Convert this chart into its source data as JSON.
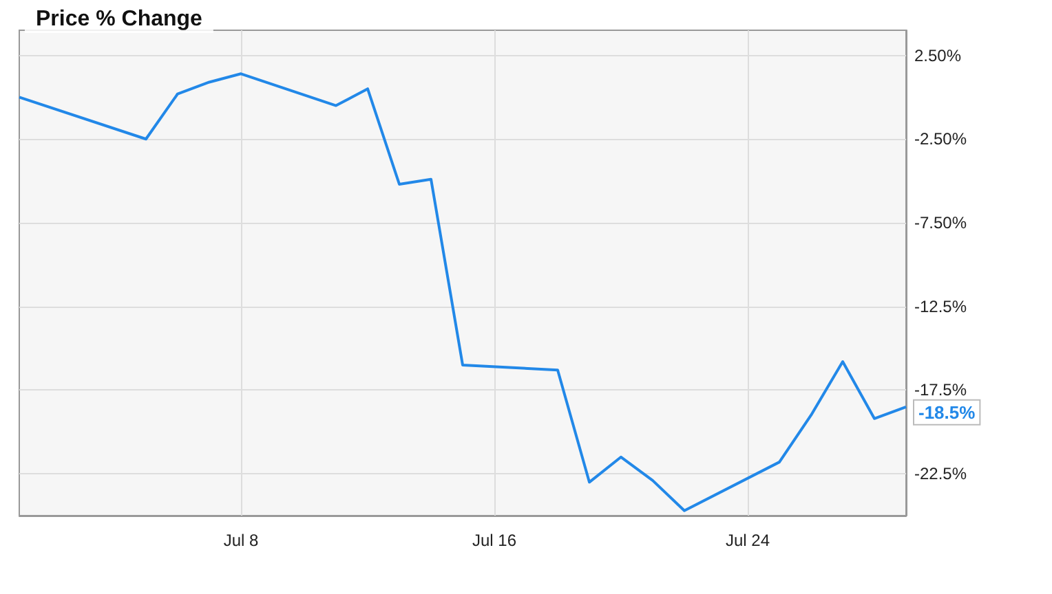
{
  "chart_data": {
    "type": "line",
    "title": "Price % Change",
    "x": [
      "--07-01",
      "--07-05",
      "--07-06",
      "--07-07",
      "--07-08",
      "--07-11",
      "--07-12",
      "--07-13",
      "--07-14",
      "--07-15",
      "--07-18",
      "--07-19",
      "--07-20",
      "--07-21",
      "--07-22",
      "--07-25",
      "--07-26",
      "--07-27",
      "--07-28",
      "--07-29"
    ],
    "series": [
      {
        "color": "#2288e8",
        "values": [
          0.0,
          -2.5,
          0.2,
          0.9,
          1.4,
          -0.5,
          0.5,
          -5.2,
          -4.9,
          -16.0,
          -16.3,
          -23.0,
          -21.5,
          -22.9,
          -24.7,
          -21.8,
          -19.0,
          -15.8,
          -19.2,
          -18.5
        ]
      }
    ],
    "xlim": [
      "--07-01",
      "--07-29"
    ],
    "xticks": [
      {
        "value": "--07-08",
        "label": "Jul 8"
      },
      {
        "value": "--07-16",
        "label": "Jul 16"
      },
      {
        "value": "--07-24",
        "label": "Jul 24"
      }
    ],
    "ylim": [
      -25,
      4
    ],
    "yticks": [
      {
        "value": 2.5,
        "label": "2.50%"
      },
      {
        "value": -2.5,
        "label": "-2.50%"
      },
      {
        "value": -7.5,
        "label": "-7.50%"
      },
      {
        "value": -12.5,
        "label": "-12.5%"
      },
      {
        "value": -17.5,
        "label": "-17.5%"
      },
      {
        "value": -22.5,
        "label": "-22.5%"
      }
    ],
    "annotations": [
      {
        "text": "-18.5%",
        "x": "--07-29",
        "y": -18.5
      }
    ],
    "grid": true,
    "marker": "none",
    "line_style": "solid"
  }
}
